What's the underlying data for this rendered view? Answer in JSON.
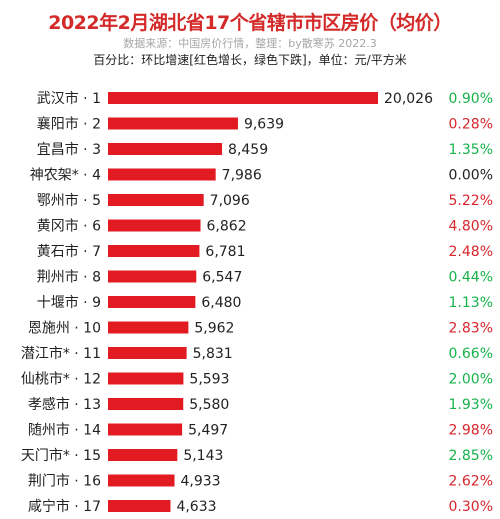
{
  "chart_data": {
    "type": "bar",
    "orientation": "horizontal",
    "title": "2022年2月湖北省17个省辖市市区房价（均价）",
    "subtitle": "数据来源：中国房价行情，整理：by散寒苏  2022.3",
    "note": "百分比：环比增速[红色增长，绿色下跌]，单位：元/平方米",
    "categories": [
      "武汉市 · 1",
      "襄阳市 · 2",
      "宜昌市 · 3",
      "神农架* · 4",
      "鄂州市 · 5",
      "黄冈市 · 6",
      "黄石市 · 7",
      "荆州市 · 8",
      "十堰市 · 9",
      "恩施州 · 10",
      "潜江市* · 11",
      "仙桃市* · 12",
      "孝感市 · 13",
      "随州市 · 14",
      "天门市* · 15",
      "荆门市 · 16",
      "咸宁市 · 17"
    ],
    "values": [
      20026,
      9639,
      8459,
      7986,
      7096,
      6862,
      6781,
      6547,
      6480,
      5962,
      5831,
      5593,
      5580,
      5497,
      5143,
      4933,
      4633
    ],
    "value_labels": [
      "20,026",
      "9,639",
      "8,459",
      "7,986",
      "7,096",
      "6,862",
      "6,781",
      "6,547",
      "6,480",
      "5,962",
      "5,831",
      "5,593",
      "5,580",
      "5,497",
      "5,143",
      "4,933",
      "4,633"
    ],
    "changes": [
      "0.90%",
      "0.28%",
      "1.35%",
      "0.00%",
      "5.22%",
      "4.80%",
      "2.48%",
      "0.44%",
      "1.13%",
      "2.83%",
      "0.66%",
      "2.00%",
      "1.93%",
      "2.98%",
      "2.85%",
      "2.62%",
      "0.30%"
    ],
    "change_directions": [
      "down",
      "up",
      "down",
      "flat",
      "up",
      "up",
      "up",
      "down",
      "down",
      "up",
      "down",
      "down",
      "down",
      "up",
      "down",
      "up",
      "up"
    ],
    "xlim": [
      0,
      20026
    ],
    "grid": false,
    "legend": "none"
  },
  "colors": {
    "bar": "#e21b23",
    "title": "#d42a2a",
    "increase": "#d7262c",
    "decrease": "#16b24a",
    "flat": "#222222",
    "subtitle": "#a6a6a6",
    "label": "#222222"
  }
}
